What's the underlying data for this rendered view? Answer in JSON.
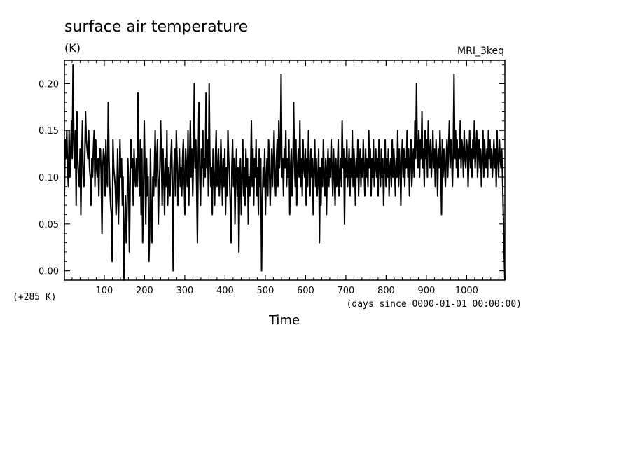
{
  "chart_data": {
    "type": "line",
    "title": "surface air temperature",
    "units": "(K)",
    "model": "MRI_3keq",
    "offset_label": "(+285 K)",
    "xlabel": "Time",
    "x_units_label": "(days since 0000-01-01 00:00:00)",
    "xlim": [
      1,
      1095
    ],
    "ylim": [
      -0.01,
      0.225
    ],
    "x_ticks": [
      100,
      200,
      300,
      400,
      500,
      600,
      700,
      800,
      900,
      1000
    ],
    "y_ticks": [
      "0.00",
      "0.05",
      "0.10",
      "0.15",
      "0.20"
    ],
    "grid": false,
    "line_color": "#000000",
    "x_step_days": 3,
    "series": [
      {
        "values": [
          0.08,
          0.14,
          0.12,
          0.15,
          0.11,
          0.09,
          0.15,
          0.1,
          0.13,
          0.16,
          0.12,
          0.22,
          0.14,
          0.11,
          0.15,
          0.07,
          0.17,
          0.12,
          0.1,
          0.09,
          0.13,
          0.06,
          0.12,
          0.16,
          0.1,
          0.09,
          0.12,
          0.17,
          0.14,
          0.13,
          0.12,
          0.15,
          0.11,
          0.1,
          0.07,
          0.12,
          0.1,
          0.13,
          0.15,
          0.09,
          0.14,
          0.11,
          0.1,
          0.12,
          0.08,
          0.13,
          0.13,
          0.1,
          0.04,
          0.11,
          0.13,
          0.12,
          0.08,
          0.14,
          0.1,
          0.09,
          0.18,
          0.12,
          0.09,
          0.07,
          0.06,
          0.01,
          0.14,
          0.11,
          0.1,
          0.09,
          0.06,
          0.08,
          0.13,
          0.05,
          0.09,
          0.14,
          0.1,
          0.12,
          0.07,
          0.1,
          -0.01,
          0.04,
          0.08,
          0.03,
          0.06,
          0.12,
          0.1,
          0.02,
          0.09,
          0.14,
          0.11,
          0.12,
          0.07,
          0.13,
          0.1,
          0.09,
          0.12,
          0.09,
          0.19,
          0.11,
          0.08,
          0.14,
          0.06,
          0.13,
          0.03,
          0.08,
          0.16,
          0.11,
          0.05,
          0.12,
          0.08,
          0.1,
          0.01,
          0.04,
          0.13,
          0.06,
          0.03,
          0.1,
          0.08,
          0.11,
          0.15,
          0.09,
          0.12,
          0.14,
          0.05,
          0.09,
          0.11,
          0.16,
          0.12,
          0.07,
          0.13,
          0.1,
          0.06,
          0.12,
          0.09,
          0.15,
          0.07,
          0.11,
          0.1,
          0.08,
          0.12,
          0.14,
          0.09,
          0.0,
          0.11,
          0.13,
          0.08,
          0.15,
          0.12,
          0.07,
          0.1,
          0.13,
          0.09,
          0.11,
          0.08,
          0.12,
          0.14,
          0.1,
          0.06,
          0.13,
          0.11,
          0.09,
          0.15,
          0.07,
          0.12,
          0.16,
          0.1,
          0.13,
          0.08,
          0.12,
          0.2,
          0.11,
          0.14,
          0.09,
          0.03,
          0.12,
          0.18,
          0.1,
          0.07,
          0.13,
          0.11,
          0.15,
          0.09,
          0.12,
          0.1,
          0.19,
          0.11,
          0.14,
          0.08,
          0.2,
          0.12,
          0.09,
          0.11,
          0.06,
          0.13,
          0.1,
          0.07,
          0.12,
          0.15,
          0.09,
          0.11,
          0.13,
          0.08,
          0.1,
          0.14,
          0.11,
          0.07,
          0.12,
          0.09,
          0.13,
          0.06,
          0.11,
          0.08,
          0.15,
          0.12,
          0.1,
          0.07,
          0.03,
          0.11,
          0.14,
          0.09,
          0.12,
          0.05,
          0.1,
          0.13,
          0.08,
          0.11,
          0.02,
          0.09,
          0.12,
          0.06,
          0.1,
          0.14,
          0.08,
          0.11,
          0.07,
          0.13,
          0.09,
          0.12,
          0.05,
          0.1,
          0.08,
          0.11,
          0.16,
          0.09,
          0.13,
          0.07,
          0.12,
          0.1,
          0.14,
          0.08,
          0.11,
          0.06,
          0.13,
          0.09,
          0.12,
          0.0,
          0.07,
          0.11,
          0.09,
          0.13,
          0.06,
          0.1,
          0.12,
          0.08,
          0.14,
          0.11,
          0.07,
          0.1,
          0.13,
          0.09,
          0.12,
          0.15,
          0.1,
          0.08,
          0.12,
          0.14,
          0.09,
          0.16,
          0.11,
          0.13,
          0.21,
          0.1,
          0.12,
          0.08,
          0.13,
          0.11,
          0.15,
          0.09,
          0.12,
          0.1,
          0.14,
          0.06,
          0.11,
          0.13,
          0.08,
          0.1,
          0.18,
          0.12,
          0.09,
          0.14,
          0.07,
          0.11,
          0.13,
          0.1,
          0.16,
          0.09,
          0.12,
          0.08,
          0.14,
          0.11,
          0.1,
          0.13,
          0.07,
          0.12,
          0.09,
          0.15,
          0.11,
          0.08,
          0.13,
          0.1,
          0.12,
          0.06,
          0.11,
          0.14,
          0.09,
          0.12,
          0.08,
          0.1,
          0.13,
          0.03,
          0.11,
          0.07,
          0.12,
          0.09,
          0.14,
          0.1,
          0.08,
          0.12,
          0.06,
          0.11,
          0.13,
          0.09,
          0.12,
          0.1,
          0.14,
          0.11,
          0.08,
          0.13,
          0.1,
          0.07,
          0.12,
          0.09,
          0.11,
          0.14,
          0.08,
          0.1,
          0.12,
          0.09,
          0.16,
          0.11,
          0.13,
          0.05,
          0.12,
          0.1,
          0.14,
          0.09,
          0.11,
          0.13,
          0.08,
          0.12,
          0.1,
          0.15,
          0.09,
          0.13,
          0.11,
          0.07,
          0.12,
          0.1,
          0.14,
          0.08,
          0.11,
          0.13,
          0.09,
          0.12,
          0.1,
          0.14,
          0.11,
          0.08,
          0.13,
          0.1,
          0.12,
          0.09,
          0.15,
          0.11,
          0.13,
          0.08,
          0.12,
          0.1,
          0.14,
          0.09,
          0.11,
          0.13,
          0.1,
          0.12,
          0.08,
          0.14,
          0.11,
          0.09,
          0.13,
          0.1,
          0.12,
          0.07,
          0.11,
          0.14,
          0.09,
          0.12,
          0.1,
          0.13,
          0.08,
          0.11,
          0.12,
          0.09,
          0.14,
          0.1,
          0.13,
          0.11,
          0.08,
          0.12,
          0.1,
          0.15,
          0.09,
          0.13,
          0.11,
          0.07,
          0.12,
          0.14,
          0.1,
          0.13,
          0.09,
          0.12,
          0.11,
          0.15,
          0.1,
          0.13,
          0.08,
          0.12,
          0.14,
          0.09,
          0.11,
          0.13,
          0.1,
          0.16,
          0.12,
          0.2,
          0.13,
          0.11,
          0.15,
          0.1,
          0.14,
          0.12,
          0.17,
          0.11,
          0.13,
          0.09,
          0.15,
          0.12,
          0.14,
          0.1,
          0.16,
          0.13,
          0.11,
          0.14,
          0.1,
          0.12,
          0.15,
          0.11,
          0.13,
          0.09,
          0.14,
          0.12,
          0.08,
          0.13,
          0.11,
          0.15,
          0.12,
          0.06,
          0.14,
          0.1,
          0.13,
          0.11,
          0.09,
          0.12,
          0.14,
          0.1,
          0.13,
          0.16,
          0.11,
          0.14,
          0.12,
          0.09,
          0.13,
          0.21,
          0.12,
          0.15,
          0.11,
          0.14,
          0.1,
          0.13,
          0.12,
          0.16,
          0.11,
          0.14,
          0.13,
          0.1,
          0.15,
          0.12,
          0.11,
          0.14,
          0.13,
          0.09,
          0.12,
          0.15,
          0.11,
          0.13,
          0.1,
          0.14,
          0.12,
          0.16,
          0.11,
          0.13,
          0.15,
          0.1,
          0.12,
          0.14,
          0.11,
          0.13,
          0.09,
          0.12,
          0.15,
          0.1,
          0.14,
          0.12,
          0.11,
          0.13,
          0.1,
          0.15,
          0.12,
          0.14,
          0.11,
          0.13,
          0.1,
          0.12,
          0.14,
          0.11,
          0.13,
          0.09,
          0.15,
          0.12,
          0.1,
          0.14,
          0.12,
          0.11,
          0.13,
          0.1,
          0.06,
          0.02,
          -0.01
        ]
      }
    ]
  }
}
